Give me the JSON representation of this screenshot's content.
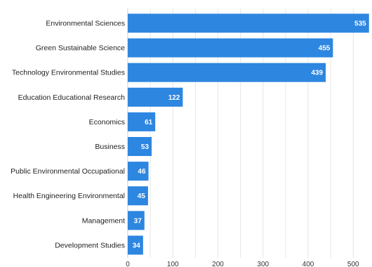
{
  "chart_data": {
    "type": "bar",
    "orientation": "horizontal",
    "categories": [
      "Environmental Sciences",
      "Green Sustainable Science",
      "Technology Environmental Studies",
      "Education Educational Research",
      "Economics",
      "Business",
      "Public Environmental Occupational",
      "Health Engineering Environmental",
      "Management",
      "Development Studies"
    ],
    "values": [
      535,
      455,
      439,
      122,
      61,
      53,
      46,
      45,
      37,
      34
    ],
    "xlim": [
      0,
      540
    ],
    "xticks": [
      0,
      100,
      200,
      300,
      400,
      500
    ],
    "grid": true,
    "bar_color": "#2d86e0",
    "data_labels": true
  }
}
